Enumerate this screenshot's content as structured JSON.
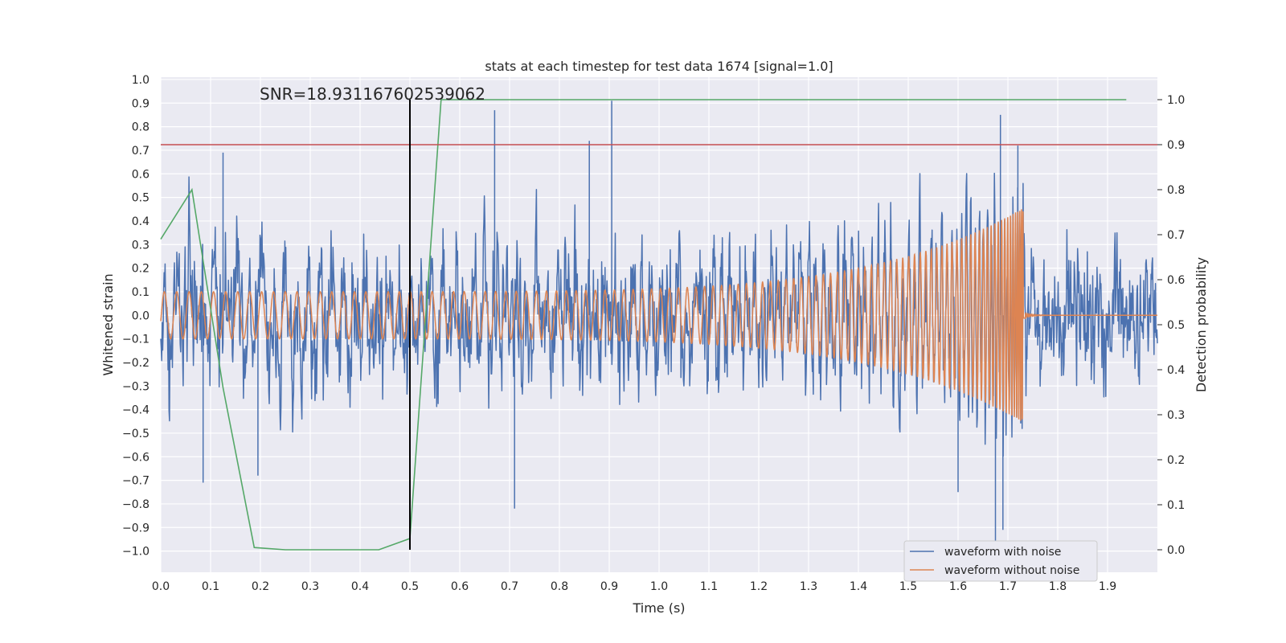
{
  "chart_data": {
    "type": "line",
    "title": "stats at each timestep for test data 1674 [signal=1.0]",
    "xlabel": "Time (s)",
    "ylabel": "Whitened strain",
    "y2label": "Detection probability",
    "annotation": "SNR=18.931167602539062",
    "xlim": [
      0.0,
      2.0
    ],
    "ylim": [
      -1.09,
      1.01
    ],
    "y2lim": [
      -0.05,
      1.05
    ],
    "grid": true,
    "legend_position": "lower-right",
    "x_ticks": [
      "0.0",
      "0.1",
      "0.2",
      "0.3",
      "0.4",
      "0.5",
      "0.6",
      "0.7",
      "0.8",
      "0.9",
      "1.0",
      "1.1",
      "1.2",
      "1.3",
      "1.4",
      "1.5",
      "1.6",
      "1.7",
      "1.8",
      "1.9"
    ],
    "y_ticks": [
      "1.0",
      "0.9",
      "0.8",
      "0.7",
      "0.6",
      "0.5",
      "0.4",
      "0.3",
      "0.2",
      "0.1",
      "0.0",
      "−0.1",
      "−0.2",
      "−0.3",
      "−0.4",
      "−0.5",
      "−0.6",
      "−0.7",
      "−0.8",
      "−0.9",
      "−1.0"
    ],
    "y2_ticks": [
      "1.0",
      "0.9",
      "0.8",
      "0.7",
      "0.6",
      "0.5",
      "0.4",
      "0.3",
      "0.2",
      "0.1",
      "0.0"
    ],
    "series": [
      {
        "name": "waveform with noise",
        "axis": "left",
        "color": "#4c72b0",
        "noise_amplitude": 0.6,
        "peaks": [
          {
            "x": 0.905,
            "y": 0.91
          },
          {
            "x": 0.67,
            "y": 0.87
          },
          {
            "x": 1.685,
            "y": 0.85
          },
          {
            "x": 0.86,
            "y": 0.74
          },
          {
            "x": 1.72,
            "y": 0.72
          },
          {
            "x": 0.125,
            "y": 0.69
          },
          {
            "x": 0.71,
            "y": -0.82
          },
          {
            "x": 1.675,
            "y": -0.98
          },
          {
            "x": 1.69,
            "y": -0.91
          },
          {
            "x": 1.6,
            "y": -0.75
          },
          {
            "x": 0.085,
            "y": -0.71
          },
          {
            "x": 0.195,
            "y": -0.68
          }
        ]
      },
      {
        "name": "waveform without noise",
        "axis": "left",
        "color": "#dd8452",
        "chirp": {
          "t_merger": 1.735,
          "freq_start_hz": 40,
          "amplitude_start": 0.1,
          "amplitude_peak": 0.46,
          "ringdown_amplitude": 0.01
        }
      },
      {
        "name": "detection probability",
        "axis": "right",
        "color": "#55a868",
        "x": [
          0.0,
          0.0625,
          0.125,
          0.1875,
          0.25,
          0.3125,
          0.375,
          0.4375,
          0.5,
          0.5625,
          0.625,
          0.6875,
          0.75,
          0.8125,
          0.875,
          0.9375,
          1.0,
          1.0625,
          1.125,
          1.1875,
          1.25,
          1.3125,
          1.375,
          1.4375,
          1.5,
          1.5625,
          1.625,
          1.6875,
          1.75,
          1.8125,
          1.875,
          1.9375
        ],
        "y": [
          0.69,
          0.8,
          0.36,
          0.005,
          0.0,
          0.0,
          0.0,
          0.0,
          0.025,
          1.0,
          1.0,
          1.0,
          1.0,
          1.0,
          1.0,
          1.0,
          1.0,
          1.0,
          1.0,
          1.0,
          1.0,
          1.0,
          1.0,
          1.0,
          1.0,
          1.0,
          1.0,
          1.0,
          1.0,
          1.0,
          1.0,
          1.0
        ]
      }
    ],
    "threshold": {
      "axis": "right",
      "value": 0.9,
      "color": "#c44e52"
    },
    "marker_line": {
      "x": 0.5,
      "y_top": 1.0,
      "y_bottom": 0.0,
      "axis": "right",
      "color": "#000000"
    },
    "legend": [
      "waveform with noise",
      "waveform without noise"
    ]
  }
}
